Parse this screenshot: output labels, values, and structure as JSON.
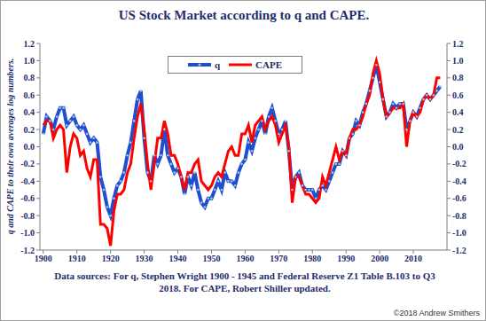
{
  "chart_data": {
    "type": "line",
    "title": "US Stock Market according to q and CAPE.",
    "y_label": "q and CAPE to their own averages log numbers.",
    "footnote": "Data sources: For q, Stephen Wright 1900 - 1945 and Federal Reserve Z1 Table B.103 to Q3 2018. For CAPE, Robert Shiller updated.",
    "copyright": "©2018 Andrew Smithers",
    "x": [
      1900,
      1901,
      1902,
      1903,
      1904,
      1905,
      1906,
      1907,
      1908,
      1909,
      1910,
      1911,
      1912,
      1913,
      1914,
      1915,
      1916,
      1917,
      1918,
      1919,
      1920,
      1921,
      1922,
      1923,
      1924,
      1925,
      1926,
      1927,
      1928,
      1929,
      1930,
      1931,
      1932,
      1933,
      1934,
      1935,
      1936,
      1937,
      1938,
      1939,
      1940,
      1941,
      1942,
      1943,
      1944,
      1945,
      1946,
      1947,
      1948,
      1949,
      1950,
      1951,
      1952,
      1953,
      1954,
      1955,
      1956,
      1957,
      1958,
      1959,
      1960,
      1961,
      1962,
      1963,
      1964,
      1965,
      1966,
      1967,
      1968,
      1969,
      1970,
      1971,
      1972,
      1973,
      1974,
      1975,
      1976,
      1977,
      1978,
      1979,
      1980,
      1981,
      1982,
      1983,
      1984,
      1985,
      1986,
      1987,
      1988,
      1989,
      1990,
      1991,
      1992,
      1993,
      1994,
      1995,
      1996,
      1997,
      1998,
      1999,
      2000,
      2001,
      2002,
      2003,
      2004,
      2005,
      2006,
      2007,
      2008,
      2009,
      2010,
      2011,
      2012,
      2013,
      2014,
      2015,
      2016,
      2017,
      2018
    ],
    "series": [
      {
        "name": "q",
        "color": "#1f4fd0",
        "marker": "circle",
        "values": [
          0.15,
          0.35,
          0.3,
          0.2,
          0.35,
          0.45,
          0.45,
          0.25,
          0.3,
          0.35,
          0.25,
          0.2,
          0.25,
          0.15,
          0.05,
          0.1,
          0.05,
          -0.35,
          -0.5,
          -0.7,
          -0.8,
          -0.6,
          -0.45,
          -0.4,
          -0.3,
          -0.1,
          0.05,
          0.3,
          0.55,
          0.65,
          0.1,
          -0.3,
          -0.4,
          -0.1,
          -0.2,
          -0.1,
          0.2,
          -0.1,
          -0.2,
          -0.3,
          -0.25,
          -0.35,
          -0.55,
          -0.35,
          -0.45,
          -0.3,
          -0.5,
          -0.65,
          -0.7,
          -0.6,
          -0.6,
          -0.5,
          -0.4,
          -0.5,
          -0.3,
          -0.4,
          -0.4,
          -0.45,
          -0.3,
          -0.2,
          -0.15,
          0.05,
          -0.05,
          0.1,
          0.2,
          0.3,
          0.15,
          0.35,
          0.45,
          0.3,
          0.15,
          0.2,
          0.3,
          -0.05,
          -0.5,
          -0.35,
          -0.3,
          -0.45,
          -0.5,
          -0.5,
          -0.5,
          -0.6,
          -0.5,
          -0.45,
          -0.5,
          -0.4,
          -0.3,
          -0.2,
          -0.2,
          -0.05,
          -0.1,
          0.1,
          0.15,
          0.3,
          0.25,
          0.4,
          0.5,
          0.65,
          0.8,
          0.95,
          0.75,
          0.55,
          0.35,
          0.4,
          0.5,
          0.45,
          0.5,
          0.5,
          0.2,
          0.3,
          0.4,
          0.35,
          0.45,
          0.55,
          0.6,
          0.55,
          0.6,
          0.65,
          0.7
        ]
      },
      {
        "name": "CAPE",
        "color": "#ff0000",
        "values": [
          0.25,
          0.3,
          0.3,
          0.1,
          0.2,
          0.25,
          0.2,
          -0.3,
          0.0,
          0.15,
          0.1,
          -0.1,
          -0.05,
          -0.25,
          -0.35,
          -0.15,
          -0.15,
          -0.9,
          -0.9,
          -0.95,
          -1.15,
          -0.75,
          -0.55,
          -0.55,
          -0.5,
          -0.3,
          -0.2,
          0.1,
          0.35,
          0.5,
          0.2,
          -0.2,
          -0.5,
          -0.2,
          0.1,
          0.1,
          0.3,
          0.15,
          -0.1,
          -0.1,
          -0.2,
          -0.35,
          -0.5,
          -0.3,
          -0.3,
          -0.2,
          -0.15,
          -0.4,
          -0.45,
          -0.5,
          -0.45,
          -0.35,
          -0.3,
          -0.35,
          -0.2,
          -0.05,
          0.0,
          -0.1,
          -0.1,
          0.15,
          0.15,
          0.25,
          0.05,
          0.25,
          0.3,
          0.35,
          0.2,
          0.3,
          0.35,
          0.25,
          0.05,
          0.15,
          0.25,
          0.0,
          -0.65,
          -0.35,
          -0.35,
          -0.45,
          -0.55,
          -0.55,
          -0.6,
          -0.65,
          -0.6,
          -0.35,
          -0.45,
          -0.3,
          -0.15,
          0.0,
          -0.15,
          -0.05,
          -0.1,
          0.1,
          0.2,
          0.2,
          0.25,
          0.35,
          0.5,
          0.6,
          0.85,
          1.0,
          0.85,
          0.55,
          0.35,
          0.4,
          0.45,
          0.45,
          0.45,
          0.5,
          0.0,
          0.3,
          0.4,
          0.35,
          0.4,
          0.55,
          0.6,
          0.55,
          0.6,
          0.8,
          0.8
        ]
      }
    ],
    "xlim": [
      1899,
      2020
    ],
    "xticks": [
      1900,
      1910,
      1920,
      1930,
      1940,
      1950,
      1960,
      1970,
      1980,
      1990,
      2000,
      2010
    ],
    "ylim": [
      -1.2,
      1.2
    ],
    "yticks": [
      -1.2,
      {
        "value": -1,
        "label": "-1.0"
      },
      -0.8,
      -0.6,
      -0.4,
      -0.2,
      {
        "value": 0,
        "label": "0.0"
      },
      0.2,
      0.4,
      0.6,
      0.8,
      {
        "value": 1,
        "label": "1.0"
      },
      1.2
    ],
    "y2lim": [
      -1.2,
      1.2
    ],
    "y2ticks": [
      -1.2,
      {
        "value": -1,
        "label": "-1.0"
      },
      -0.8,
      -0.6,
      -0.4,
      -0.2,
      {
        "value": 0,
        "label": "0.0"
      },
      0.2,
      0.4,
      0.6,
      0.8,
      {
        "value": 1,
        "label": "1.0"
      },
      1.2
    ],
    "grid": false,
    "legend": "top"
  }
}
